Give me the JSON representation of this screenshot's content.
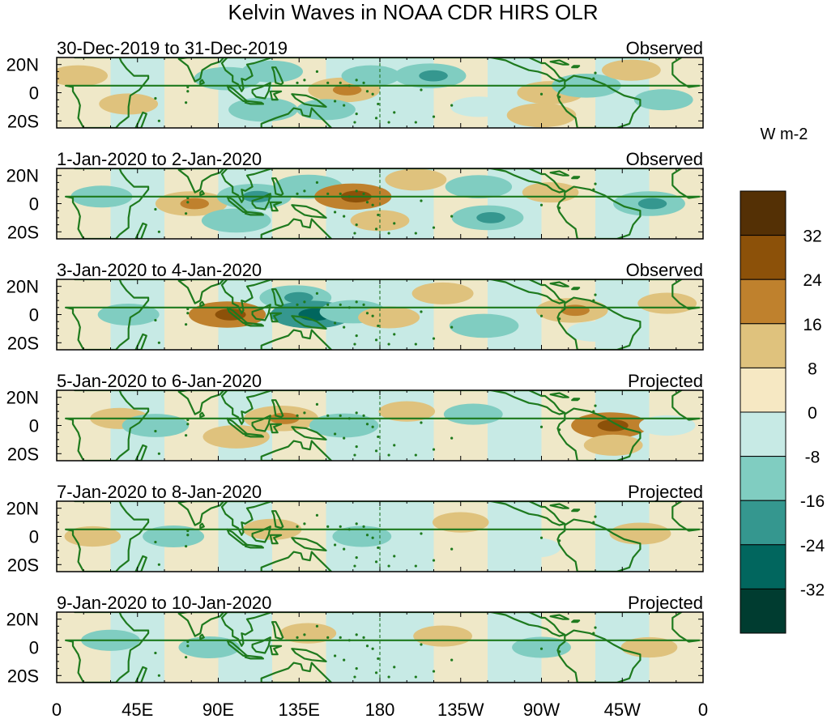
{
  "title": "Kelvin Waves in NOAA CDR HIRS OLR",
  "units": "W m-2",
  "panels": [
    {
      "date_range": "30-Dec-2019 to 31-Dec-2019",
      "status": "Observed"
    },
    {
      "date_range": "1-Jan-2020 to 2-Jan-2020",
      "status": "Observed"
    },
    {
      "date_range": "3-Jan-2020 to 4-Jan-2020",
      "status": "Observed"
    },
    {
      "date_range": "5-Jan-2020 to 6-Jan-2020",
      "status": "Projected"
    },
    {
      "date_range": "7-Jan-2020 to 8-Jan-2020",
      "status": "Projected"
    },
    {
      "date_range": "9-Jan-2020 to 10-Jan-2020",
      "status": "Projected"
    }
  ],
  "lat_ticks": [
    "20N",
    "0",
    "20S"
  ],
  "lon_ticks": [
    "0",
    "45E",
    "90E",
    "135E",
    "180",
    "135W",
    "90W",
    "45W",
    "0"
  ],
  "colorbar": {
    "labels": [
      "32",
      "24",
      "16",
      "8",
      "0",
      "-8",
      "-16",
      "-24",
      "-32"
    ],
    "colors": [
      "#543005",
      "#8c5109",
      "#bf812d",
      "#dfc27d",
      "#f6e8c3",
      "#c7eae5",
      "#80cdc1",
      "#35978f",
      "#01665e",
      "#003c30"
    ]
  },
  "colors": {
    "land": "#1e7a1e",
    "dateline": "#2e7d32"
  },
  "field_anomalies": [
    [
      {
        "lon": 12,
        "lat": 12,
        "v": 9
      },
      {
        "lon": 40,
        "lat": -8,
        "v": 9
      },
      {
        "lon": 95,
        "lat": 10,
        "v": -12
      },
      {
        "lon": 115,
        "lat": -12,
        "v": -13
      },
      {
        "lon": 120,
        "lat": 15,
        "v": -10
      },
      {
        "lon": 160,
        "lat": 2,
        "v": 14
      },
      {
        "lon": 150,
        "lat": -12,
        "v": -9
      },
      {
        "lon": 175,
        "lat": 12,
        "v": -9
      },
      {
        "lon": 208,
        "lat": 12,
        "v": -14
      },
      {
        "lon": 235,
        "lat": -10,
        "v": -8
      },
      {
        "lon": 275,
        "lat": 0,
        "v": 12
      },
      {
        "lon": 270,
        "lat": -16,
        "v": 13
      },
      {
        "lon": 295,
        "lat": 5,
        "v": -13
      },
      {
        "lon": 320,
        "lat": 16,
        "v": 9
      },
      {
        "lon": 338,
        "lat": -5,
        "v": -9
      }
    ],
    [
      {
        "lon": 25,
        "lat": 5,
        "v": -10
      },
      {
        "lon": 75,
        "lat": 0,
        "v": 14
      },
      {
        "lon": 110,
        "lat": 5,
        "v": -15
      },
      {
        "lon": 100,
        "lat": -12,
        "v": -13
      },
      {
        "lon": 140,
        "lat": 12,
        "v": -13
      },
      {
        "lon": 165,
        "lat": 5,
        "v": 16
      },
      {
        "lon": 180,
        "lat": -12,
        "v": 9
      },
      {
        "lon": 200,
        "lat": 17,
        "v": 10
      },
      {
        "lon": 235,
        "lat": 12,
        "v": -12
      },
      {
        "lon": 240,
        "lat": -10,
        "v": -14
      },
      {
        "lon": 275,
        "lat": 8,
        "v": 8
      },
      {
        "lon": 330,
        "lat": 0,
        "v": -14
      }
    ],
    [
      {
        "lon": 40,
        "lat": 0,
        "v": -10
      },
      {
        "lon": 95,
        "lat": 0,
        "v": 16
      },
      {
        "lon": 133,
        "lat": 12,
        "v": -14
      },
      {
        "lon": 142,
        "lat": 0,
        "v": -18
      },
      {
        "lon": 165,
        "lat": 2,
        "v": -12
      },
      {
        "lon": 185,
        "lat": -2,
        "v": 10
      },
      {
        "lon": 215,
        "lat": 15,
        "v": 10
      },
      {
        "lon": 238,
        "lat": -8,
        "v": -13
      },
      {
        "lon": 287,
        "lat": 3,
        "v": 14
      },
      {
        "lon": 300,
        "lat": -12,
        "v": -8
      },
      {
        "lon": 340,
        "lat": 8,
        "v": 9
      }
    ],
    [
      {
        "lon": 35,
        "lat": 5,
        "v": 9
      },
      {
        "lon": 55,
        "lat": 0,
        "v": -12
      },
      {
        "lon": 100,
        "lat": -8,
        "v": 12
      },
      {
        "lon": 125,
        "lat": 5,
        "v": 15
      },
      {
        "lon": 160,
        "lat": 0,
        "v": -13
      },
      {
        "lon": 195,
        "lat": 10,
        "v": 8
      },
      {
        "lon": 232,
        "lat": 8,
        "v": -9
      },
      {
        "lon": 308,
        "lat": 0,
        "v": 16
      },
      {
        "lon": 310,
        "lat": -14,
        "v": 9
      },
      {
        "lon": 340,
        "lat": 0,
        "v": -8
      }
    ],
    [
      {
        "lon": 20,
        "lat": 0,
        "v": 8
      },
      {
        "lon": 65,
        "lat": 0,
        "v": -10
      },
      {
        "lon": 120,
        "lat": 5,
        "v": 9
      },
      {
        "lon": 170,
        "lat": 0,
        "v": -9
      },
      {
        "lon": 225,
        "lat": 10,
        "v": 8
      },
      {
        "lon": 265,
        "lat": -8,
        "v": -8
      },
      {
        "lon": 325,
        "lat": 2,
        "v": 10
      }
    ],
    [
      {
        "lon": 30,
        "lat": 5,
        "v": -9
      },
      {
        "lon": 85,
        "lat": 0,
        "v": -10
      },
      {
        "lon": 140,
        "lat": 10,
        "v": 8
      },
      {
        "lon": 180,
        "lat": 0,
        "v": -8
      },
      {
        "lon": 215,
        "lat": 8,
        "v": 9
      },
      {
        "lon": 270,
        "lat": 0,
        "v": -9
      },
      {
        "lon": 330,
        "lat": 0,
        "v": 8
      }
    ]
  ]
}
